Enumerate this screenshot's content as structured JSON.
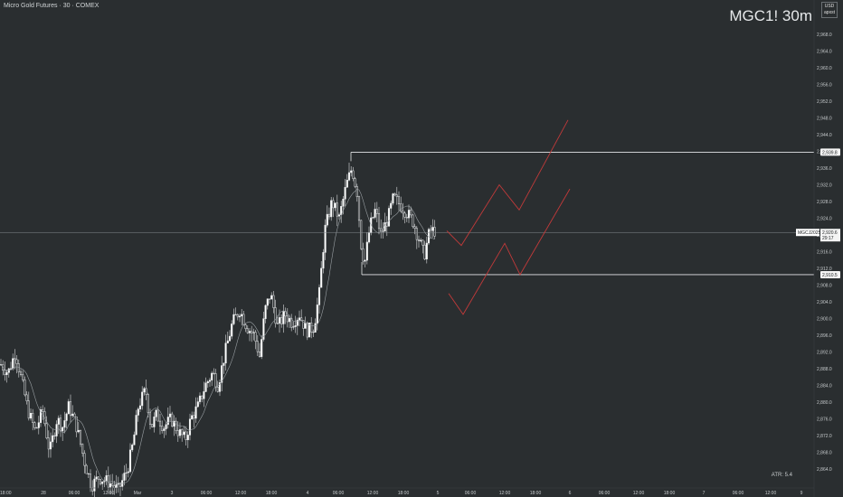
{
  "header": {
    "title": "Micro Gold Futures · 30 · COMEX"
  },
  "watermark": "MGC1! 30m",
  "currency": {
    "line1": "USD",
    "line2": "apxst"
  },
  "atr_label": "ATR: 5.4",
  "chart_data": {
    "type": "candlestick",
    "title": "Micro Gold Futures · 30 · COMEX",
    "symbol": "MGC1!",
    "timeframe": "30m",
    "ylim": [
      2860,
      2972
    ],
    "y_ticks": [
      "2,968.0",
      "2,964.0",
      "2,960.0",
      "2,956.0",
      "2,952.0",
      "2,948.0",
      "2,944.0",
      "2,940.0",
      "2,936.0",
      "2,932.0",
      "2,928.0",
      "2,924.0",
      "2,920.0",
      "2,916.0",
      "2,912.0",
      "2,908.0",
      "2,904.0",
      "2,900.0",
      "2,896.0",
      "2,892.0",
      "2,888.0",
      "2,884.0",
      "2,880.0",
      "2,876.0",
      "2,872.0",
      "2,868.0",
      "2,864.0"
    ],
    "x_ticks": [
      {
        "label": "18:00",
        "x": 0
      },
      {
        "label": "28",
        "x": 48
      },
      {
        "label": "06:00",
        "x": 82
      },
      {
        "label": "12:00",
        "x": 120
      },
      {
        "label": "Mar",
        "x": 152
      },
      {
        "label": "3",
        "x": 190
      },
      {
        "label": "06:00",
        "x": 228
      },
      {
        "label": "12:00",
        "x": 266
      },
      {
        "label": "18:00",
        "x": 300
      },
      {
        "label": "4",
        "x": 340
      },
      {
        "label": "06:00",
        "x": 374
      },
      {
        "label": "12:00",
        "x": 412
      },
      {
        "label": "18:00",
        "x": 446
      },
      {
        "label": "5",
        "x": 484
      },
      {
        "label": "06:00",
        "x": 520
      },
      {
        "label": "12:00",
        "x": 558
      },
      {
        "label": "18:00",
        "x": 592
      },
      {
        "label": "6",
        "x": 630
      },
      {
        "label": "06:00",
        "x": 668
      },
      {
        "label": "12:00",
        "x": 706
      },
      {
        "label": "18:00",
        "x": 740
      },
      {
        "label": "7",
        "x": 778
      },
      {
        "label": "06:00",
        "x": 816
      },
      {
        "label": "12:00",
        "x": 852
      },
      {
        "label": "9",
        "x": 886
      }
    ],
    "horizontal_levels": [
      {
        "label": "2,939.8",
        "value": 2939.8
      },
      {
        "label": "2,910.5",
        "value": 2910.5
      }
    ],
    "current_price": {
      "label": "2,920.6",
      "value": 2920.6,
      "series": "MGCJ2025",
      "countdown": "29:17"
    },
    "projection_paths": [
      [
        [
          494,
          2921
        ],
        [
          510,
          2917.5
        ],
        [
          552,
          2932
        ],
        [
          574,
          2926
        ],
        [
          628,
          2947.5
        ]
      ],
      [
        [
          496,
          2906
        ],
        [
          512,
          2901
        ],
        [
          558,
          2918
        ],
        [
          575,
          2910.5
        ],
        [
          630,
          2931
        ]
      ]
    ],
    "anchors": [
      {
        "t": 0,
        "v": 2889
      },
      {
        "t": 8,
        "v": 2887
      },
      {
        "t": 16,
        "v": 2892
      },
      {
        "t": 22,
        "v": 2886
      },
      {
        "t": 30,
        "v": 2878
      },
      {
        "t": 38,
        "v": 2873
      },
      {
        "t": 46,
        "v": 2878
      },
      {
        "t": 54,
        "v": 2868
      },
      {
        "t": 62,
        "v": 2876
      },
      {
        "t": 68,
        "v": 2874
      },
      {
        "t": 75,
        "v": 2879
      },
      {
        "t": 84,
        "v": 2874
      },
      {
        "t": 92,
        "v": 2866
      },
      {
        "t": 100,
        "v": 2860
      },
      {
        "t": 108,
        "v": 2862
      },
      {
        "t": 118,
        "v": 2861
      },
      {
        "t": 130,
        "v": 2859
      },
      {
        "t": 140,
        "v": 2864
      },
      {
        "t": 146,
        "v": 2870
      },
      {
        "t": 152,
        "v": 2879
      },
      {
        "t": 160,
        "v": 2883
      },
      {
        "t": 166,
        "v": 2874
      },
      {
        "t": 172,
        "v": 2877
      },
      {
        "t": 180,
        "v": 2874
      },
      {
        "t": 188,
        "v": 2876
      },
      {
        "t": 196,
        "v": 2873
      },
      {
        "t": 204,
        "v": 2871
      },
      {
        "t": 210,
        "v": 2876
      },
      {
        "t": 218,
        "v": 2879
      },
      {
        "t": 226,
        "v": 2884
      },
      {
        "t": 234,
        "v": 2887
      },
      {
        "t": 240,
        "v": 2884
      },
      {
        "t": 248,
        "v": 2892
      },
      {
        "t": 256,
        "v": 2899
      },
      {
        "t": 264,
        "v": 2902
      },
      {
        "t": 272,
        "v": 2898
      },
      {
        "t": 280,
        "v": 2896
      },
      {
        "t": 286,
        "v": 2891
      },
      {
        "t": 292,
        "v": 2902
      },
      {
        "t": 298,
        "v": 2906
      },
      {
        "t": 306,
        "v": 2898
      },
      {
        "t": 314,
        "v": 2901
      },
      {
        "t": 322,
        "v": 2899
      },
      {
        "t": 330,
        "v": 2901
      },
      {
        "t": 338,
        "v": 2897
      },
      {
        "t": 346,
        "v": 2898
      },
      {
        "t": 352,
        "v": 2906
      },
      {
        "t": 358,
        "v": 2921
      },
      {
        "t": 366,
        "v": 2928
      },
      {
        "t": 374,
        "v": 2924
      },
      {
        "t": 382,
        "v": 2932
      },
      {
        "t": 388,
        "v": 2936
      },
      {
        "t": 394,
        "v": 2930
      },
      {
        "t": 398,
        "v": 2918
      },
      {
        "t": 402,
        "v": 2913
      },
      {
        "t": 408,
        "v": 2922
      },
      {
        "t": 414,
        "v": 2926
      },
      {
        "t": 420,
        "v": 2920
      },
      {
        "t": 428,
        "v": 2924
      },
      {
        "t": 434,
        "v": 2929
      },
      {
        "t": 442,
        "v": 2927
      },
      {
        "t": 450,
        "v": 2925
      },
      {
        "t": 456,
        "v": 2923
      },
      {
        "t": 462,
        "v": 2919
      },
      {
        "t": 468,
        "v": 2915
      },
      {
        "t": 474,
        "v": 2921
      },
      {
        "t": 480,
        "v": 2921
      }
    ]
  }
}
